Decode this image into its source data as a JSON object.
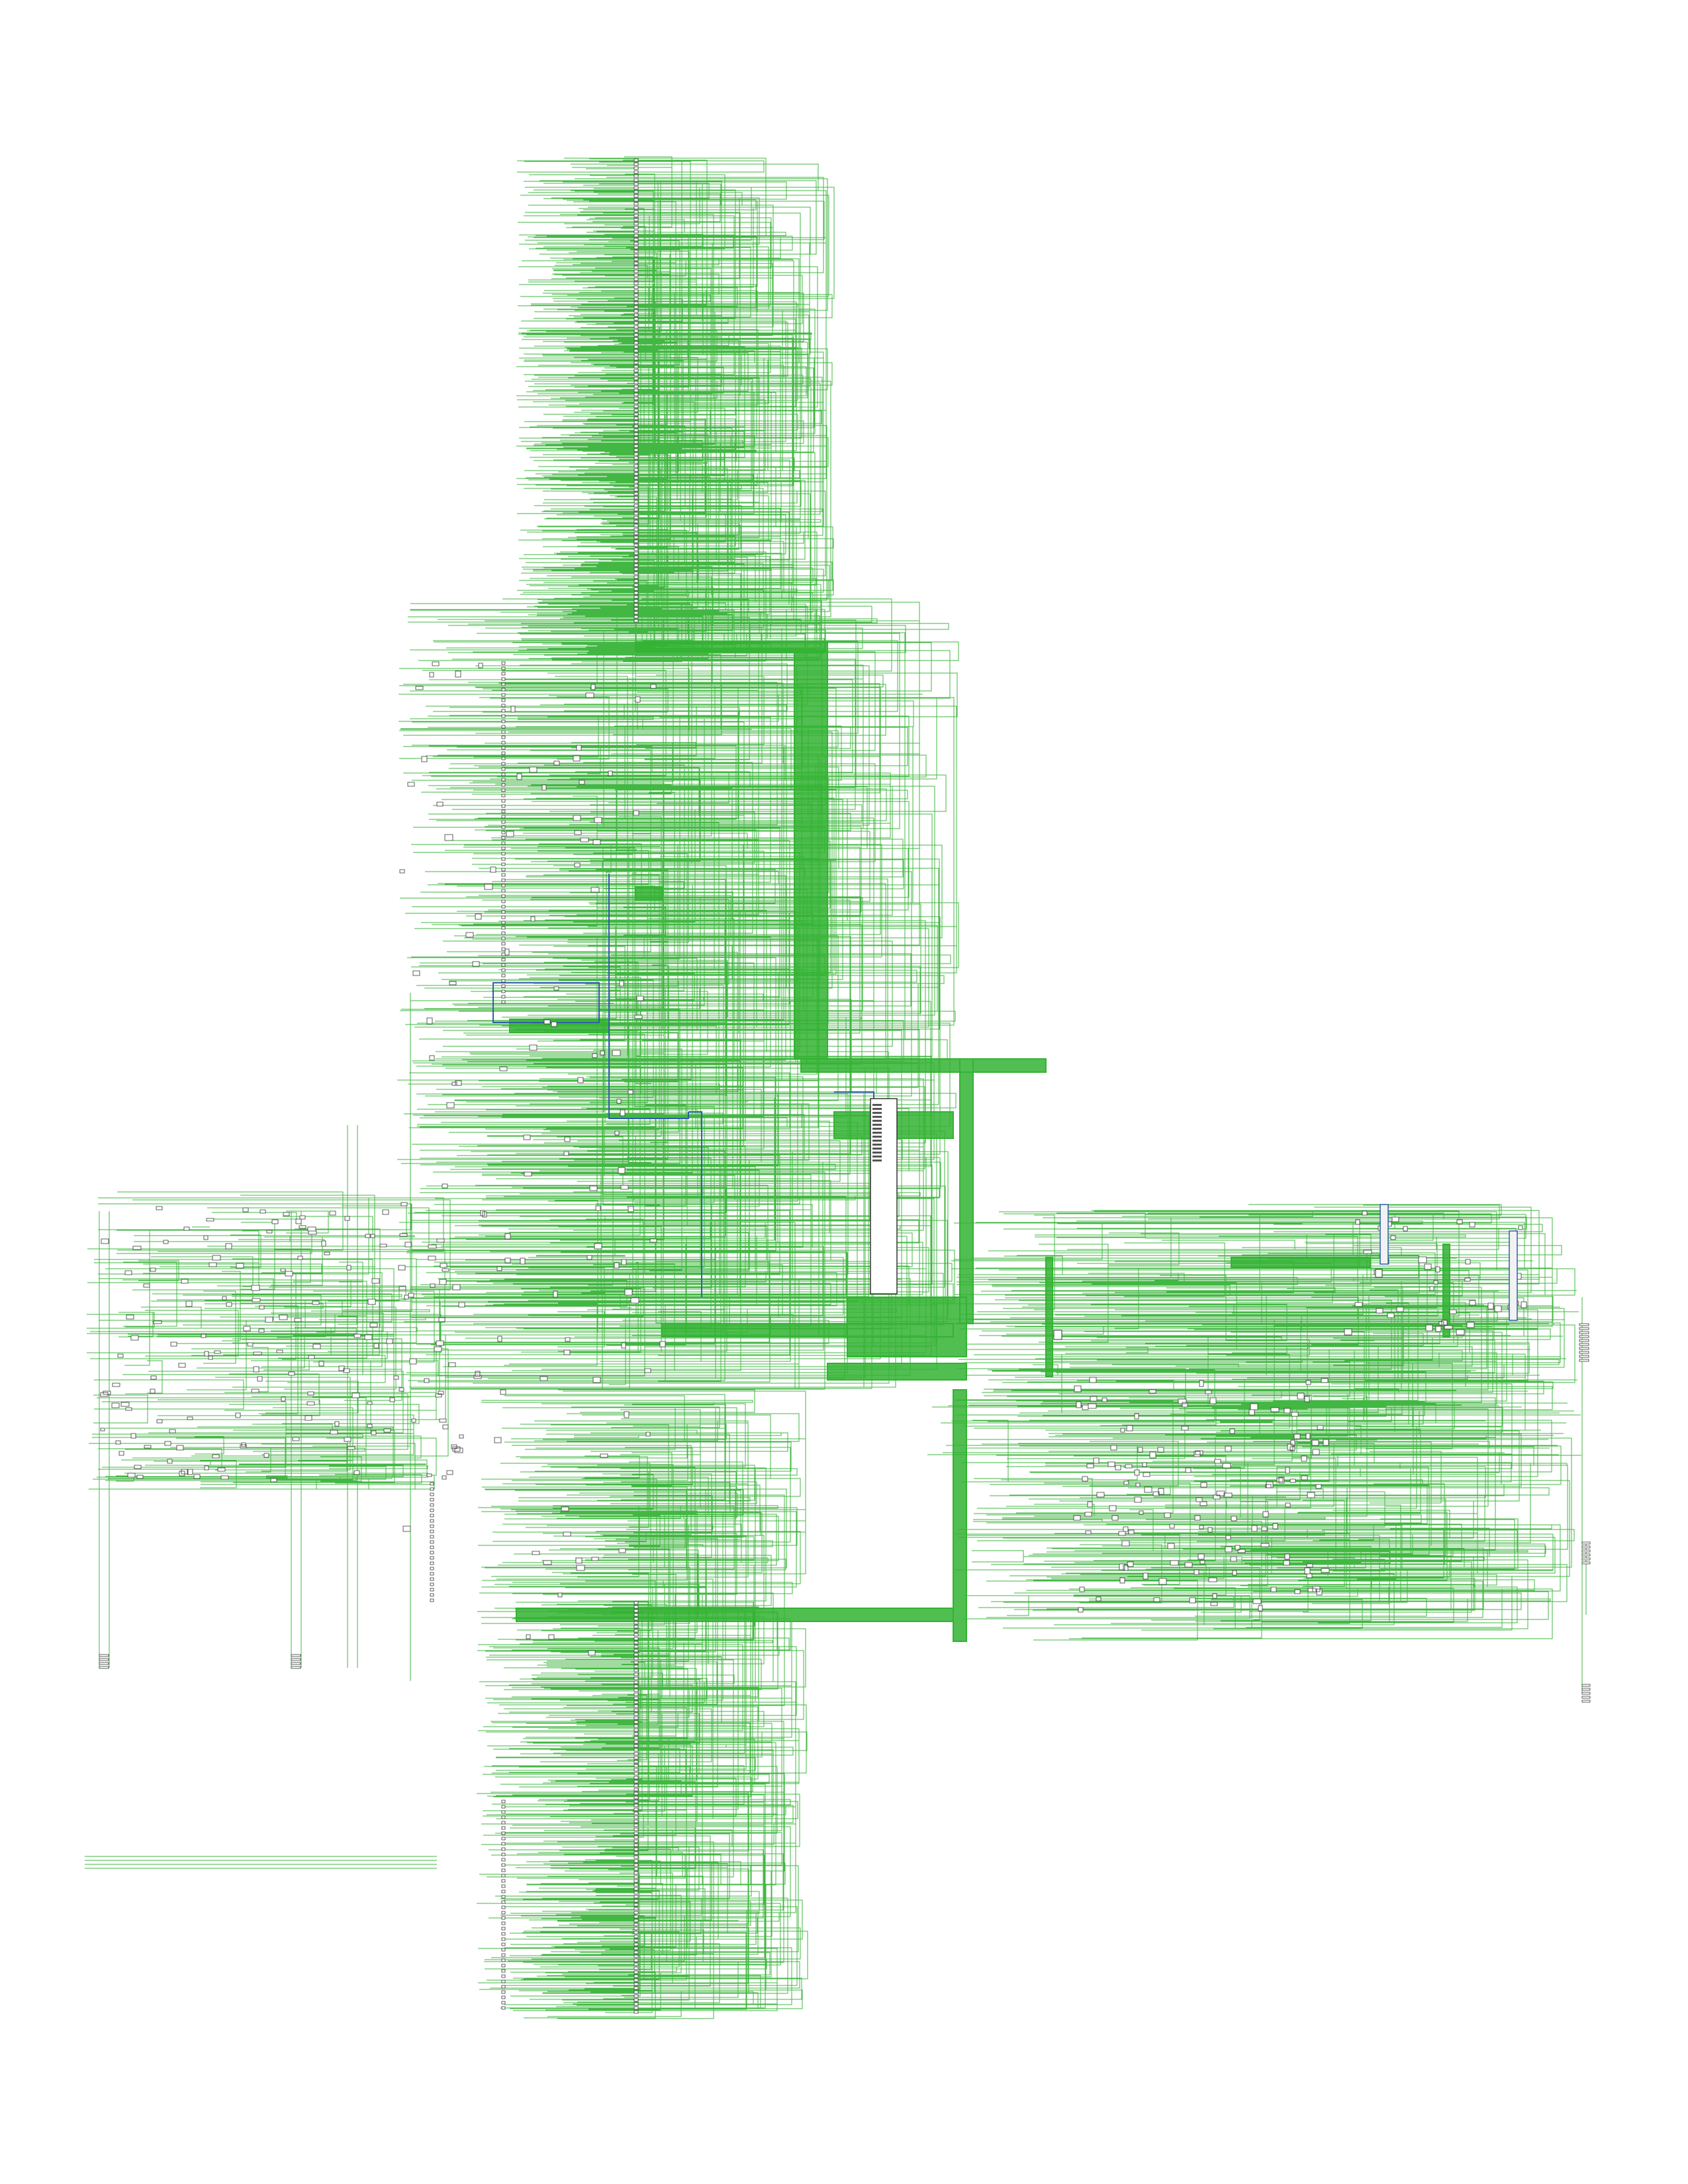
{
  "document": {
    "title": ""
  },
  "colors": {
    "background": "#ffffff",
    "wire": "#22aa22",
    "wire_dense": "#33b333",
    "bus": "#2f5fa8",
    "component_outline": "#333333",
    "component_fill": "#ffffff",
    "block_fill": "#f2f2f2"
  },
  "view": {
    "type": "netlist-schematic",
    "zoom": "fit-page"
  }
}
